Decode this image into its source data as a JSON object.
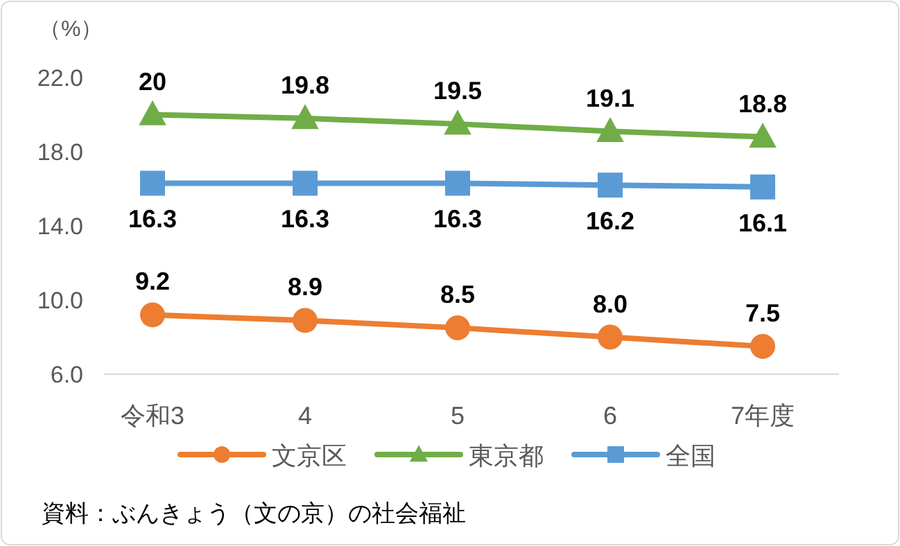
{
  "chart_data": {
    "type": "line",
    "ylabel": "（%）",
    "categories": [
      "令和3",
      "4",
      "5",
      "6",
      "7年度"
    ],
    "series": [
      {
        "name": "文京区",
        "color": "#ed7d31",
        "marker": "circle",
        "values": [
          9.2,
          8.9,
          8.5,
          8.0,
          7.5
        ],
        "value_labels": [
          "9.2",
          "8.9",
          "8.5",
          "8.0",
          "7.5"
        ]
      },
      {
        "name": "東京都",
        "color": "#70ad47",
        "marker": "triangle",
        "values": [
          20,
          19.8,
          19.5,
          19.1,
          18.8
        ],
        "value_labels": [
          "20",
          "19.8",
          "19.5",
          "19.1",
          "18.8"
        ]
      },
      {
        "name": "全国",
        "color": "#5b9bd5",
        "marker": "square",
        "values": [
          16.3,
          16.3,
          16.3,
          16.2,
          16.1
        ],
        "value_labels": [
          "16.3",
          "16.3",
          "16.3",
          "16.2",
          "16.1"
        ]
      }
    ],
    "ylim": [
      6,
      22
    ],
    "yticks": [
      {
        "value": 6,
        "label": "6.0"
      },
      {
        "value": 10,
        "label": "10.0"
      },
      {
        "value": 14,
        "label": "14.0"
      },
      {
        "value": 18,
        "label": "18.0"
      },
      {
        "value": 22,
        "label": "22.0"
      }
    ],
    "grid": false,
    "legend": "bottom",
    "line_style": "solid",
    "annotations": [
      "資料：ぶんきょう（文の京）の社会福祉"
    ]
  }
}
